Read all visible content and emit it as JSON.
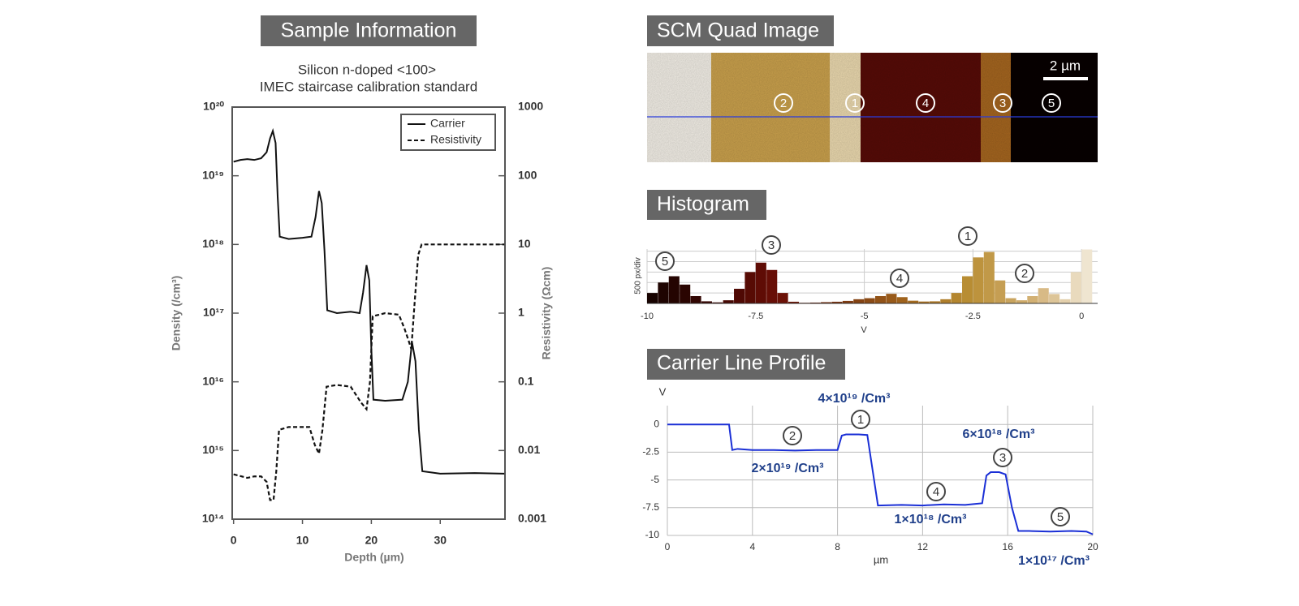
{
  "headings": {
    "sample": "Sample Information",
    "scm": "SCM Quad Image",
    "histogram": "Histogram",
    "profile": "Carrier Line Profile"
  },
  "scm_image": {
    "scale_bar": "2 µm",
    "markers": [
      "2",
      "1",
      "4",
      "3",
      "5"
    ]
  },
  "chart_data": [
    {
      "type": "line",
      "title": "Silicon n-doped <100>",
      "subtitle": "IMEC  staircase calibration standard",
      "x_label": "Depth (µm)",
      "y_label": "Density (/cm³)",
      "y2_label": "Resistivity (Ωcm)",
      "log": true,
      "grid": false,
      "legend": "top-right",
      "xlim": [
        -0.2,
        39.4
      ],
      "xticks": [
        0,
        10,
        20,
        30
      ],
      "ylim": [
        100000000000000.0,
        1e+20
      ],
      "yticks": [
        {
          "value": 100000000000000.0,
          "label": "10¹⁴"
        },
        {
          "value": 1000000000000000.0,
          "label": "10¹⁵"
        },
        {
          "value": 1e+16,
          "label": "10¹⁶"
        },
        {
          "value": 1e+17,
          "label": "10¹⁷"
        },
        {
          "value": 1e+18,
          "label": "10¹⁸"
        },
        {
          "value": 1e+19,
          "label": "10¹⁹"
        },
        {
          "value": 1e+20,
          "label": "10²⁰"
        }
      ],
      "y2lim": [
        0.001,
        1000
      ],
      "y2ticks": [
        0.001,
        0.01,
        0.1,
        1,
        10,
        100,
        1000
      ],
      "series": [
        {
          "name": "Carrier",
          "color": "#111111",
          "line_style": "solid",
          "x": [
            0,
            1,
            2,
            3,
            4,
            4.8,
            5.3,
            5.7,
            6.1,
            6.4,
            6.7,
            8,
            10,
            11.3,
            11.9,
            12.4,
            12.8,
            13.2,
            13.6,
            15,
            17,
            18.3,
            18.8,
            19.3,
            19.7,
            20,
            20.3,
            22,
            24.5,
            25.3,
            25.9,
            26.4,
            26.9,
            27.4,
            30,
            35,
            39.3
          ],
          "values": [
            1.6e+19,
            1.7e+19,
            1.75e+19,
            1.7e+19,
            1.8e+19,
            2.2e+19,
            3.5e+19,
            4.5e+19,
            3e+19,
            5e+18,
            1.3e+18,
            1.2e+18,
            1.25e+18,
            1.3e+18,
            2.5e+18,
            6e+18,
            4e+18,
            8e+17,
            1.1e+17,
            1e+17,
            1.05e+17,
            1e+17,
            2e+17,
            5e+17,
            3e+17,
            3e+16,
            5500000000000000.0,
            5300000000000000.0,
            5500000000000000.0,
            1e+16,
            3.8e+16,
            2e+16,
            2000000000000000.0,
            500000000000000.0,
            460000000000000.0,
            470000000000000.0,
            460000000000000.0
          ]
        },
        {
          "name": "Resistivity",
          "color": "#111111",
          "line_style": "dashed",
          "axis": "y2",
          "x": [
            0,
            2,
            3,
            4,
            4.8,
            5.3,
            5.8,
            6.2,
            6.6,
            8,
            11,
            11.8,
            12.4,
            12.9,
            13.5,
            15,
            17,
            18.5,
            19.3,
            19.8,
            20.2,
            22,
            24,
            24.8,
            25.4,
            25.8,
            26.3,
            26.8,
            27.3,
            30,
            35,
            39.3
          ],
          "values": [
            0.0045,
            0.004,
            0.0042,
            0.0042,
            0.0035,
            0.0019,
            0.0019,
            0.005,
            0.02,
            0.022,
            0.022,
            0.012,
            0.009,
            0.02,
            0.085,
            0.09,
            0.085,
            0.05,
            0.04,
            0.1,
            0.9,
            1,
            0.95,
            0.6,
            0.4,
            0.3,
            1.5,
            7,
            10,
            10,
            10,
            10
          ]
        }
      ]
    },
    {
      "type": "histogram",
      "y_label": "500 px/div",
      "x_label": "V",
      "grid": true,
      "xlim": [
        -10,
        0.37
      ],
      "xticks": [
        -10,
        -7.5,
        -5,
        -2.5,
        0
      ],
      "ylim": [
        0,
        2600
      ],
      "yticks": [
        0,
        500,
        1000,
        1500,
        2000,
        2500
      ],
      "colormap": [
        "#140300",
        "#3a0602",
        "#6a0e06",
        "#7a3510",
        "#a0641c",
        "#b98e34",
        "#d2b074",
        "#f5efe2"
      ],
      "bins": [
        -10,
        -9.75,
        -9.5,
        -9.25,
        -9,
        -8.75,
        -8.5,
        -8.25,
        -8,
        -7.75,
        -7.5,
        -7.25,
        -7,
        -6.75,
        -6.5,
        -6.25,
        -6,
        -5.75,
        -5.5,
        -5.25,
        -5,
        -4.75,
        -4.5,
        -4.25,
        -4,
        -3.75,
        -3.5,
        -3.25,
        -3,
        -2.75,
        -2.5,
        -2.25,
        -2,
        -1.75,
        -1.5,
        -1.25,
        -1,
        -0.75,
        -0.5,
        -0.25,
        0,
        0.25
      ],
      "values": [
        500,
        1000,
        1300,
        900,
        350,
        100,
        50,
        150,
        700,
        1500,
        1950,
        1600,
        500,
        80,
        30,
        40,
        60,
        80,
        120,
        200,
        250,
        350,
        460,
        300,
        130,
        90,
        100,
        200,
        500,
        1300,
        2200,
        2460,
        1100,
        250,
        150,
        350,
        730,
        450,
        200,
        1500,
        2580
      ],
      "markers": [
        "5",
        "3",
        "4",
        "1",
        "2"
      ]
    },
    {
      "type": "line",
      "y_label": "V",
      "x_label": "µm",
      "grid": true,
      "xlim": [
        0,
        20
      ],
      "xticks": [
        0,
        4,
        8,
        12,
        16,
        20
      ],
      "ylim": [
        -10,
        1.7
      ],
      "yticks": [
        0,
        -2.5,
        -5,
        -7.5,
        -10
      ],
      "series": [
        {
          "name": "Carrier profile",
          "color": "#1a2fd6",
          "line_style": "solid",
          "x": [
            0,
            1,
            2,
            2.9,
            3.05,
            3.3,
            4,
            5,
            6,
            7,
            8,
            8.2,
            8.4,
            9,
            9.4,
            9.6,
            9.9,
            11,
            12,
            13,
            14,
            14.8,
            15.0,
            15.2,
            15.6,
            15.9,
            16.2,
            16.5,
            17,
            18,
            19,
            19.7,
            20
          ],
          "values": [
            0,
            0,
            0,
            0,
            -2.3,
            -2.2,
            -2.3,
            -2.3,
            -2.35,
            -2.3,
            -2.3,
            -1.0,
            -0.9,
            -0.9,
            -0.95,
            -3.5,
            -7.3,
            -7.25,
            -7.3,
            -7.2,
            -7.25,
            -7.1,
            -4.6,
            -4.3,
            -4.3,
            -4.5,
            -7.5,
            -9.6,
            -9.6,
            -9.65,
            -9.6,
            -9.65,
            -9.9
          ]
        }
      ],
      "annotations": [
        "4×10¹⁹ /Cm³",
        "2×10¹⁹ /Cm³",
        "1×10¹⁸ /Cm³",
        "6×10¹⁸ /Cm³",
        "1×10¹⁷ /Cm³"
      ],
      "markers": [
        "1",
        "2",
        "4",
        "3",
        "5"
      ]
    }
  ]
}
